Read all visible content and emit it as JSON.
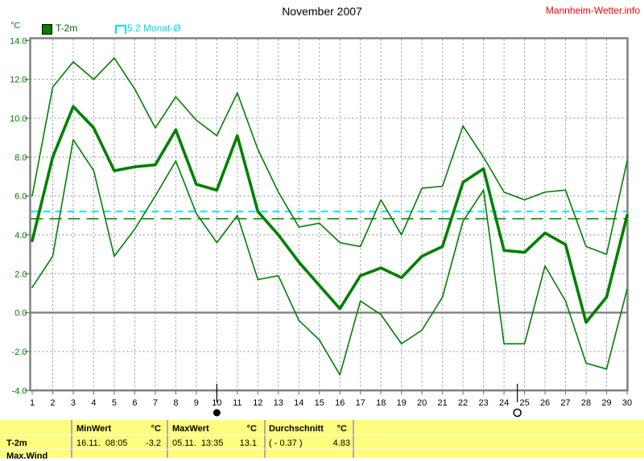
{
  "header": {
    "title": "November 2007",
    "site": "Mannheim-Wetter.info"
  },
  "legend": {
    "t2m_label": "T-2m",
    "monat_label": "5.2 Monat-Ø"
  },
  "chart_data": {
    "type": "line",
    "title": "November 2007",
    "y_unit": "°C",
    "ylim": [
      -4,
      14
    ],
    "ytick_step": 2,
    "yticks": [
      "14.0",
      "12.0",
      "10.0",
      "8.0",
      "6.0",
      "4.0",
      "2.0",
      "0.0",
      "-2.0",
      "-4.0"
    ],
    "xticks": [
      "1",
      "2",
      "3",
      "4",
      "5",
      "6",
      "7",
      "8",
      "9",
      "10",
      "11",
      "12",
      "13",
      "14",
      "15",
      "16",
      "17",
      "18",
      "19",
      "20",
      "21",
      "22",
      "23",
      "24",
      "25",
      "26",
      "27",
      "28",
      "29",
      "30"
    ],
    "x": [
      1,
      2,
      3,
      4,
      5,
      6,
      7,
      8,
      9,
      10,
      11,
      12,
      13,
      14,
      15,
      16,
      17,
      18,
      19,
      20,
      21,
      22,
      23,
      24,
      25,
      26,
      27,
      28,
      29,
      30
    ],
    "grid": true,
    "legend_position": "top-left",
    "series": [
      {
        "name": "T-2m daily maximum",
        "color": "#008000",
        "width": 1.6,
        "values": [
          6.0,
          11.6,
          12.9,
          12.0,
          13.1,
          11.5,
          9.5,
          11.1,
          9.9,
          9.1,
          11.3,
          8.4,
          6.2,
          4.4,
          4.6,
          3.6,
          3.4,
          5.8,
          4.0,
          6.4,
          6.5,
          9.6,
          8.0,
          6.2,
          5.8,
          6.2,
          6.3,
          3.4,
          3.0,
          7.8
        ]
      },
      {
        "name": "T-2m daily mean",
        "color": "#008000",
        "width": 3.6,
        "values": [
          3.7,
          8.0,
          10.6,
          9.5,
          7.3,
          7.5,
          7.6,
          9.4,
          6.6,
          6.3,
          9.1,
          5.2,
          4.0,
          2.6,
          1.4,
          0.2,
          1.9,
          2.3,
          1.8,
          2.9,
          3.4,
          6.7,
          7.4,
          3.2,
          3.1,
          4.1,
          3.5,
          -0.5,
          0.8,
          5.0
        ]
      },
      {
        "name": "T-2m daily minimum",
        "color": "#008000",
        "width": 1.6,
        "values": [
          1.3,
          2.9,
          8.9,
          7.3,
          2.9,
          4.3,
          6.0,
          7.8,
          5.1,
          3.6,
          5.0,
          1.7,
          1.9,
          -0.4,
          -1.4,
          -3.2,
          0.6,
          -0.1,
          -1.6,
          -0.9,
          0.8,
          4.7,
          6.3,
          -1.6,
          -1.6,
          2.4,
          0.6,
          -2.6,
          -2.9,
          1.2
        ]
      }
    ],
    "ref_lines": [
      {
        "name": "Monat-Ø",
        "value": 5.2,
        "color": "#00f0f0",
        "width": 2,
        "dash": "9,6"
      },
      {
        "name": "Durchschnitt",
        "value": 4.83,
        "color": "#008000",
        "width": 1.5,
        "dash": "15,8"
      }
    ],
    "moons": [
      {
        "name": "new-moon",
        "day": 10
      },
      {
        "name": "full-moon",
        "day": 24.65
      }
    ]
  },
  "table": {
    "unit": "°C",
    "row_label": "T-2m",
    "partial_row_label": "Max.Wind",
    "min": {
      "header": "MinWert",
      "datetime": "16.11.  08:05",
      "value": "-3.2"
    },
    "max": {
      "header": "MaxWert",
      "datetime": "05.11.  13:35",
      "value": "13.1"
    },
    "avg": {
      "header": "Durchschnitt",
      "deviation": "( - 0.37 )",
      "value": "4.83"
    }
  }
}
